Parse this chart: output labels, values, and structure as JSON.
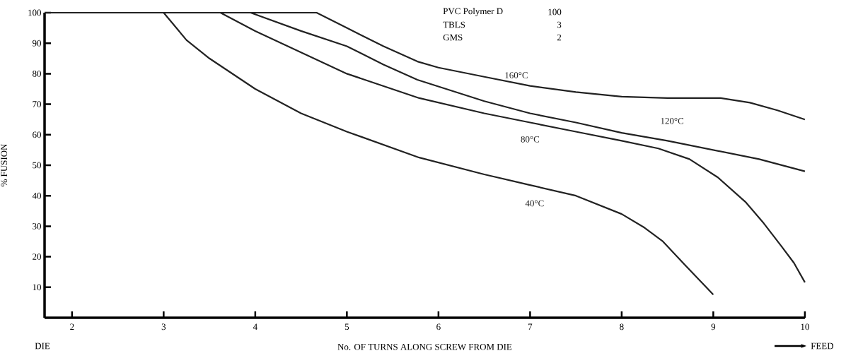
{
  "chart_data": {
    "type": "line",
    "xlabel": "No. OF TURNS ALONG SCREW FROM DIE",
    "ylabel": "% FUSION",
    "xlim": [
      1.7,
      10
    ],
    "ylim": [
      0,
      100
    ],
    "xticks": [
      2,
      3,
      4,
      5,
      6,
      7,
      8,
      9,
      10
    ],
    "yticks": [
      10,
      20,
      30,
      40,
      50,
      60,
      70,
      80,
      90,
      100
    ],
    "grid": false,
    "legend": false,
    "marker": "none",
    "line_style": "solid",
    "series": [
      {
        "name": "160°C",
        "color": "#222222",
        "x": [
          1.7,
          4.67,
          5.0,
          5.4,
          5.77,
          6.0,
          6.5,
          7.0,
          7.5,
          8.0,
          8.5,
          9.08,
          9.4,
          9.7,
          10.0
        ],
        "values": [
          100,
          100,
          95,
          89,
          84,
          82,
          79,
          76,
          74,
          72.5,
          72,
          72,
          70.5,
          68,
          65
        ]
      },
      {
        "name": "120°C",
        "color": "#222222",
        "x": [
          1.7,
          3.95,
          4.5,
          5.0,
          5.4,
          5.77,
          6.5,
          7.0,
          7.5,
          8.0,
          8.5,
          9.0,
          9.5,
          10.0
        ],
        "values": [
          100,
          100,
          94,
          89,
          83,
          78,
          71,
          67,
          64,
          60.6,
          58,
          55,
          52,
          48
        ]
      },
      {
        "name": "80°C",
        "color": "#222222",
        "x": [
          1.7,
          3.62,
          4.0,
          4.5,
          5.0,
          5.79,
          6.5,
          7.0,
          7.5,
          8.0,
          8.4,
          8.74,
          9.05,
          9.35,
          9.55,
          9.73,
          9.88,
          10.0
        ],
        "values": [
          100,
          100,
          94,
          87,
          80,
          72,
          67,
          64,
          61,
          58,
          55.5,
          52,
          46,
          38,
          31,
          24,
          18,
          11.6
        ]
      },
      {
        "name": "40°C",
        "color": "#222222",
        "x": [
          1.7,
          3.0,
          3.25,
          3.5,
          4.0,
          4.5,
          5.0,
          5.79,
          6.5,
          7.0,
          7.5,
          8.0,
          8.25,
          8.45,
          8.7,
          9.0
        ],
        "values": [
          100,
          100,
          91,
          85,
          75,
          67,
          61,
          52.5,
          47,
          43.5,
          40,
          34,
          29.5,
          25,
          17,
          7.6
        ]
      }
    ],
    "annotations": [
      "PVC Polymer D",
      "100",
      "TBLS",
      "3",
      "GMS",
      "2",
      "DIE",
      "FEED"
    ]
  }
}
